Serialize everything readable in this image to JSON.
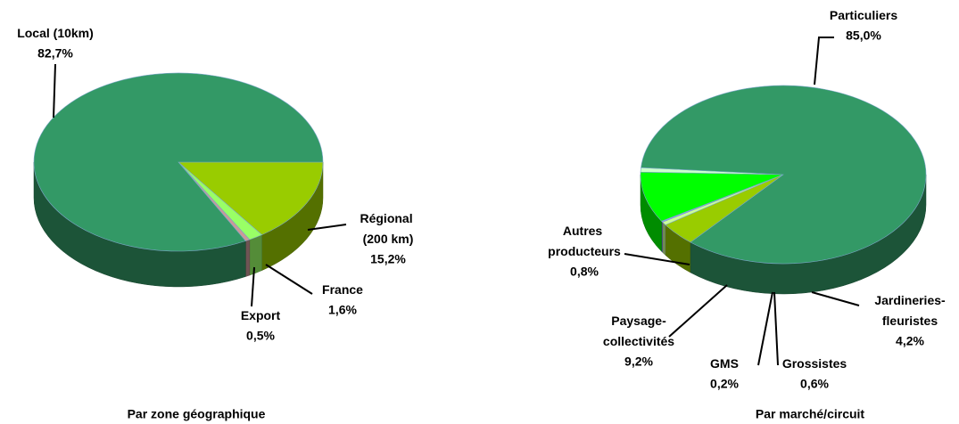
{
  "chart_data": [
    {
      "type": "pie3d",
      "title": "Par zone géographique",
      "categories": [
        "Régional (200 km)",
        "France",
        "Export",
        "Local (10km)"
      ],
      "values": [
        15.2,
        1.6,
        0.5,
        82.7
      ],
      "value_labels": [
        "15,2%",
        "1,6%",
        "0,5%",
        "82,7%"
      ],
      "colors": [
        "#99cc00",
        "#99ff66",
        "#cc9999",
        "#339966"
      ]
    },
    {
      "type": "pie3d",
      "title": "Par marché/circuit",
      "categories": [
        "Jardineries-fleuristes",
        "Grossistes",
        "GMS",
        "Paysage-collectivités",
        "Autres producteurs",
        "Particuliers"
      ],
      "values": [
        4.2,
        0.6,
        0.2,
        9.2,
        0.8,
        85.0
      ],
      "value_labels": [
        "4,2%",
        "0,6%",
        "0,2%",
        "9,2%",
        "0,8%",
        "85,0%"
      ],
      "colors": [
        "#99cc00",
        "#ccff99",
        "#9999ff",
        "#00ff00",
        "#ccffcc",
        "#339966"
      ]
    }
  ]
}
